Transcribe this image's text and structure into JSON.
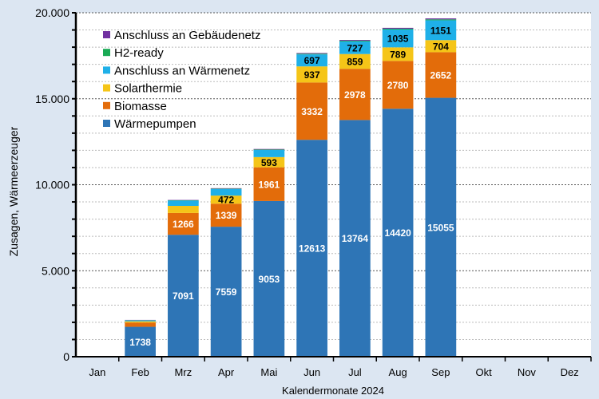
{
  "chart_data": {
    "type": "bar",
    "stacked": true,
    "xlabel": "Kalendermonate 2024",
    "ylabel": "Zusagen, Wärmeerzeuger",
    "ylim": [
      0,
      20000
    ],
    "yticks": [
      0,
      5000,
      10000,
      15000,
      20000
    ],
    "ytick_labels": [
      "0",
      "5.000",
      "10.000",
      "15.000",
      "20.000"
    ],
    "grid": "horizontal dotted, major every 5000, minor every 1000",
    "legend_position": "top-left",
    "categories": [
      "Jan",
      "Feb",
      "Mrz",
      "Apr",
      "Mai",
      "Jun",
      "Jul",
      "Aug",
      "Sep",
      "Okt",
      "Nov",
      "Dez"
    ],
    "series": [
      {
        "name": "Wärmepumpen",
        "color": "#2e75b6",
        "label_color": "#ffffff",
        "values": [
          0,
          1738,
          7091,
          7559,
          9053,
          12613,
          13764,
          14420,
          15055,
          null,
          null,
          null
        ],
        "labeled": true
      },
      {
        "name": "Biomasse",
        "color": "#e36c0a",
        "label_color": "#ffffff",
        "values": [
          0,
          250,
          1266,
          1339,
          1961,
          3332,
          2978,
          2780,
          2652,
          null,
          null,
          null
        ],
        "labeled": true
      },
      {
        "name": "Solarthermie",
        "color": "#f5c518",
        "label_color": "#000000",
        "values": [
          0,
          70,
          413,
          472,
          593,
          937,
          859,
          789,
          704,
          null,
          null,
          null
        ],
        "labeled": true
      },
      {
        "name": "Anschluss an Wärmenetz",
        "color": "#1fb0e8",
        "label_color": "#000000",
        "values": [
          0,
          50,
          304,
          379,
          412,
          697,
          727,
          1035,
          1151,
          null,
          null,
          null
        ],
        "labeled": true
      },
      {
        "name": "H2-ready",
        "color": "#1aaa55",
        "label_color": "#000000",
        "values": [
          0,
          15,
          20,
          25,
          30,
          40,
          45,
          50,
          55,
          null,
          null,
          null
        ],
        "labeled": false
      },
      {
        "name": "Anschluss an Gebäudenetz",
        "color": "#7030a0",
        "label_color": "#000000",
        "values": [
          0,
          15,
          20,
          25,
          30,
          40,
          45,
          50,
          55,
          null,
          null,
          null
        ],
        "labeled": false
      }
    ],
    "legend_order": [
      5,
      4,
      3,
      2,
      1,
      0
    ]
  }
}
